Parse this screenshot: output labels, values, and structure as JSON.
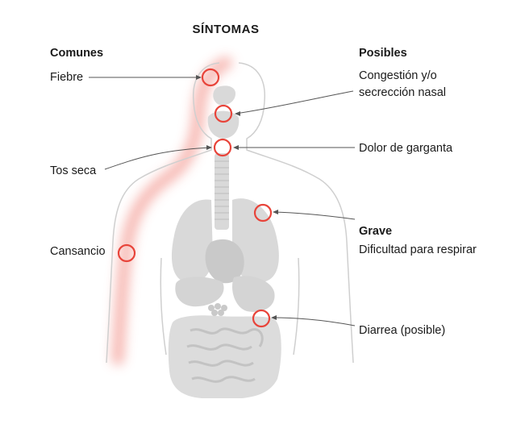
{
  "title": "SÍNTOMAS",
  "sections": {
    "common": "Comunes",
    "possible": "Posibles",
    "severe": "Grave"
  },
  "labels": {
    "fever": "Fiebre",
    "dry_cough": "Tos seca",
    "fatigue": "Cansancio",
    "congestion_line1": "Congestión y/o",
    "congestion_line2": "secrección nasal",
    "sore_throat": "Dolor de garganta",
    "breathing": "Dificultad para respirar",
    "diarrhea": "Diarrea (posible)"
  },
  "colors": {
    "marker": "#e8443a",
    "glow": "#f6b3ad",
    "leader": "#555555",
    "anatomy": "#d9d9d9",
    "outline": "#cfcfcf"
  }
}
